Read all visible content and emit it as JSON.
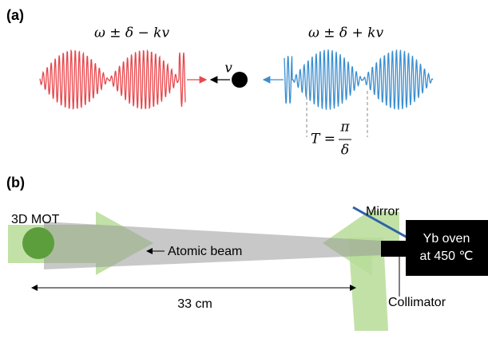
{
  "panel_a": {
    "label": "(a)",
    "left_wave": "ω ± δ − kv",
    "right_wave": "ω ± δ + kv",
    "velocity": "v",
    "period_lhs": "T =",
    "period_num": "π",
    "period_den": "δ"
  },
  "panel_b": {
    "label": "(b)",
    "mot": "3D MOT",
    "beam": "Atomic beam",
    "mirror": "Mirror",
    "oven_line1": "Yb oven",
    "oven_line2": "at 450 ℃",
    "collimator": "Collimator",
    "distance": "33 cm"
  }
}
